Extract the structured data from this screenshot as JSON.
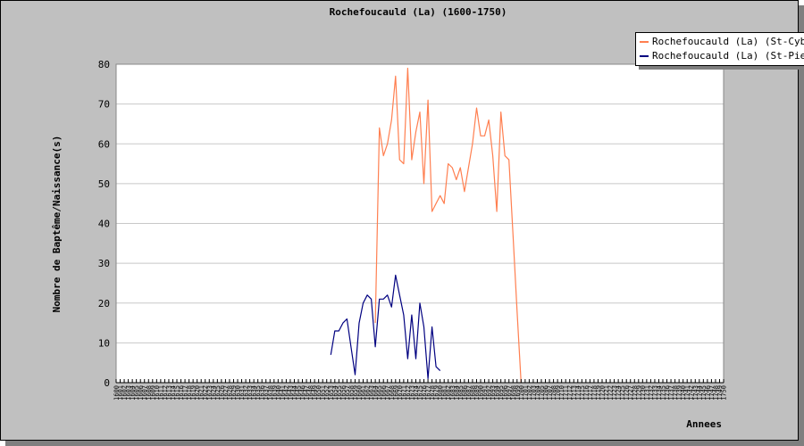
{
  "chart_data": {
    "type": "line",
    "title": "Rochefoucauld (La) (1600-1750)",
    "xlabel": "Annees",
    "ylabel": "Nombre de Baptême/Naissance(s)",
    "xlim": [
      1600,
      1750
    ],
    "ylim": [
      0,
      80
    ],
    "yticks": [
      0,
      10,
      20,
      30,
      40,
      50,
      60,
      70,
      80
    ],
    "grid": true,
    "legend": "top-right",
    "series": [
      {
        "name": "Rochefoucauld (La) (St-Cybard)",
        "color": "#ff7f50",
        "points": [
          [
            1664,
            15
          ],
          [
            1665,
            64
          ],
          [
            1666,
            57
          ],
          [
            1667,
            60
          ],
          [
            1668,
            66
          ],
          [
            1669,
            77
          ],
          [
            1670,
            56
          ],
          [
            1671,
            55
          ],
          [
            1672,
            79
          ],
          [
            1673,
            56
          ],
          [
            1674,
            63
          ],
          [
            1675,
            68
          ],
          [
            1676,
            50
          ],
          [
            1677,
            71
          ],
          [
            1678,
            43
          ],
          [
            1679,
            45
          ],
          [
            1680,
            47
          ],
          [
            1681,
            45
          ],
          [
            1682,
            55
          ],
          [
            1683,
            54
          ],
          [
            1684,
            51
          ],
          [
            1685,
            54
          ],
          [
            1686,
            48
          ],
          [
            1687,
            54
          ],
          [
            1688,
            60
          ],
          [
            1689,
            69
          ],
          [
            1690,
            62
          ],
          [
            1691,
            62
          ],
          [
            1692,
            66
          ],
          [
            1693,
            57
          ],
          [
            1694,
            43
          ],
          [
            1695,
            68
          ],
          [
            1696,
            57
          ],
          [
            1697,
            56
          ],
          [
            1698,
            37
          ],
          [
            1699,
            18
          ],
          [
            1700,
            0
          ]
        ]
      },
      {
        "name": "Rochefoucauld (La) (St-Pierre)",
        "color": "#000080",
        "points": [
          [
            1653,
            7
          ],
          [
            1654,
            13
          ],
          [
            1655,
            13
          ],
          [
            1656,
            15
          ],
          [
            1657,
            16
          ],
          [
            1658,
            9
          ],
          [
            1659,
            2
          ],
          [
            1660,
            15
          ],
          [
            1661,
            20
          ],
          [
            1662,
            22
          ],
          [
            1663,
            21
          ],
          [
            1664,
            9
          ],
          [
            1665,
            21
          ],
          [
            1666,
            21
          ],
          [
            1667,
            22
          ],
          [
            1668,
            19
          ],
          [
            1669,
            27
          ],
          [
            1670,
            22
          ],
          [
            1671,
            17
          ],
          [
            1672,
            6
          ],
          [
            1673,
            17
          ],
          [
            1674,
            6
          ],
          [
            1675,
            20
          ],
          [
            1676,
            14
          ],
          [
            1677,
            1
          ],
          [
            1678,
            14
          ],
          [
            1679,
            4
          ],
          [
            1680,
            3
          ]
        ]
      }
    ]
  }
}
